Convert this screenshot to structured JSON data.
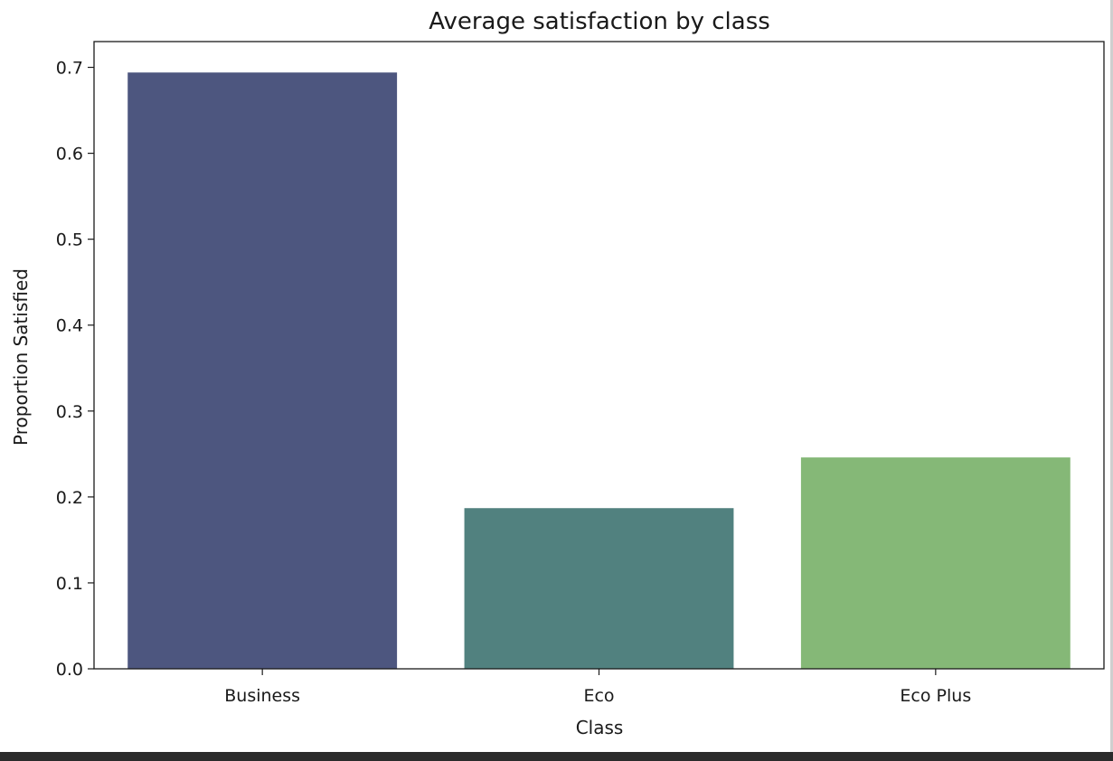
{
  "chart_data": {
    "type": "bar",
    "title": "Average satisfaction by class",
    "xlabel": "Class",
    "ylabel": "Proportion Satisfied",
    "categories": [
      "Business",
      "Eco",
      "Eco Plus"
    ],
    "values": [
      0.694,
      0.187,
      0.246
    ],
    "colors": [
      "#4d567f",
      "#51817f",
      "#85b877"
    ],
    "ylim": [
      0,
      0.73
    ],
    "yticks": [
      0.0,
      0.1,
      0.2,
      0.3,
      0.4,
      0.5,
      0.6,
      0.7
    ],
    "ytick_labels": [
      "0.0",
      "0.1",
      "0.2",
      "0.3",
      "0.4",
      "0.5",
      "0.6",
      "0.7"
    ],
    "grid": false,
    "legend": "none"
  }
}
